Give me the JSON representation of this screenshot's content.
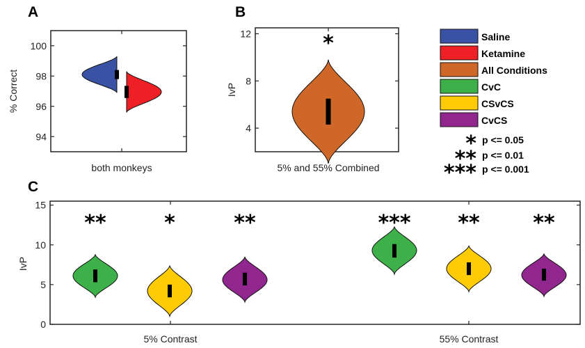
{
  "panels": [
    {
      "id": "A",
      "letter": "A",
      "ylabel": "% Correct",
      "xlabel": "both monkeys",
      "ylim": [
        93,
        101
      ],
      "yticks": [
        94,
        96,
        98,
        100
      ]
    },
    {
      "id": "B",
      "letter": "B",
      "ylabel": "IvP",
      "xlabel": "5% and 55% Combined",
      "ylim": [
        2,
        12.5
      ],
      "yticks": [
        4,
        8,
        12
      ]
    },
    {
      "id": "C",
      "letter": "C",
      "ylabel": "IvP",
      "xlabel_left": "5% Contrast",
      "xlabel_right": "55% Contrast",
      "ylim": [
        0,
        15.5
      ],
      "yticks": [
        0,
        5,
        10,
        15
      ]
    }
  ],
  "legend": {
    "colors": [
      {
        "label": "Saline",
        "color": "#3a52a4"
      },
      {
        "label": "Ketamine",
        "color": "#ee2025"
      },
      {
        "label": "All Conditions",
        "color": "#cf6729"
      },
      {
        "label": "CvC",
        "color": "#3eb049"
      },
      {
        "label": "CSvCS",
        "color": "#ffcb05"
      },
      {
        "label": "CvCS",
        "color": "#91278e"
      }
    ],
    "significance": [
      {
        "stars": "*",
        "label": "p <= 0.05"
      },
      {
        "stars": "**",
        "label": "p <= 0.01"
      },
      {
        "stars": "***",
        "label": "p <= 0.001"
      }
    ]
  },
  "chart_data": [
    {
      "panel": "A",
      "type": "violin",
      "split": true,
      "ylabel": "% Correct",
      "xlabel": "both monkeys",
      "ylim": [
        93,
        101
      ],
      "series": [
        {
          "name": "Saline",
          "color": "#3a52a4",
          "side": "left",
          "min": 96.9,
          "max": 99.3,
          "median": 98.1,
          "iqr": [
            97.8,
            98.4
          ],
          "peak": 98.1
        },
        {
          "name": "Ketamine",
          "color": "#ee2025",
          "side": "right",
          "min": 95.6,
          "max": 98.3,
          "median": 96.95,
          "iqr": [
            96.55,
            97.35
          ],
          "peak": 96.95
        }
      ]
    },
    {
      "panel": "B",
      "type": "violin",
      "ylabel": "IvP",
      "xlabel": "5% and 55% Combined",
      "ylim": [
        2,
        12.5
      ],
      "series": [
        {
          "name": "All Conditions",
          "color": "#cf6729",
          "min": 1.0,
          "max": 9.8,
          "median": 5.5,
          "iqr": [
            4.3,
            6.5
          ],
          "peak": 5.4,
          "significance": "*"
        }
      ]
    },
    {
      "panel": "C",
      "type": "violin",
      "ylabel": "IvP",
      "ylim": [
        0,
        15.5
      ],
      "groups": [
        {
          "label": "5% Contrast",
          "series": [
            {
              "name": "CvC",
              "color": "#3eb049",
              "min": 3.4,
              "max": 8.8,
              "median": 6.1,
              "iqr": [
                5.3,
                6.9
              ],
              "peak": 6.1,
              "significance": "**"
            },
            {
              "name": "CSvCS",
              "color": "#ffcb05",
              "min": 1.0,
              "max": 7.4,
              "median": 4.2,
              "iqr": [
                3.4,
                5.0
              ],
              "peak": 4.2,
              "significance": "*"
            },
            {
              "name": "CvCS",
              "color": "#91278e",
              "min": 2.8,
              "max": 8.5,
              "median": 5.7,
              "iqr": [
                4.9,
                6.5
              ],
              "peak": 5.6,
              "significance": "**"
            }
          ]
        },
        {
          "label": "55% Contrast",
          "series": [
            {
              "name": "CvC",
              "color": "#3eb049",
              "min": 6.3,
              "max": 12.3,
              "median": 9.3,
              "iqr": [
                8.4,
                10.1
              ],
              "peak": 9.3,
              "significance": "***"
            },
            {
              "name": "CSvCS",
              "color": "#ffcb05",
              "min": 4.1,
              "max": 9.9,
              "median": 7.0,
              "iqr": [
                6.2,
                7.8
              ],
              "peak": 7.0,
              "significance": "**"
            },
            {
              "name": "CvCS",
              "color": "#91278e",
              "min": 3.5,
              "max": 8.9,
              "median": 6.2,
              "iqr": [
                5.5,
                7.0
              ],
              "peak": 6.2,
              "significance": "**"
            }
          ]
        }
      ]
    }
  ]
}
